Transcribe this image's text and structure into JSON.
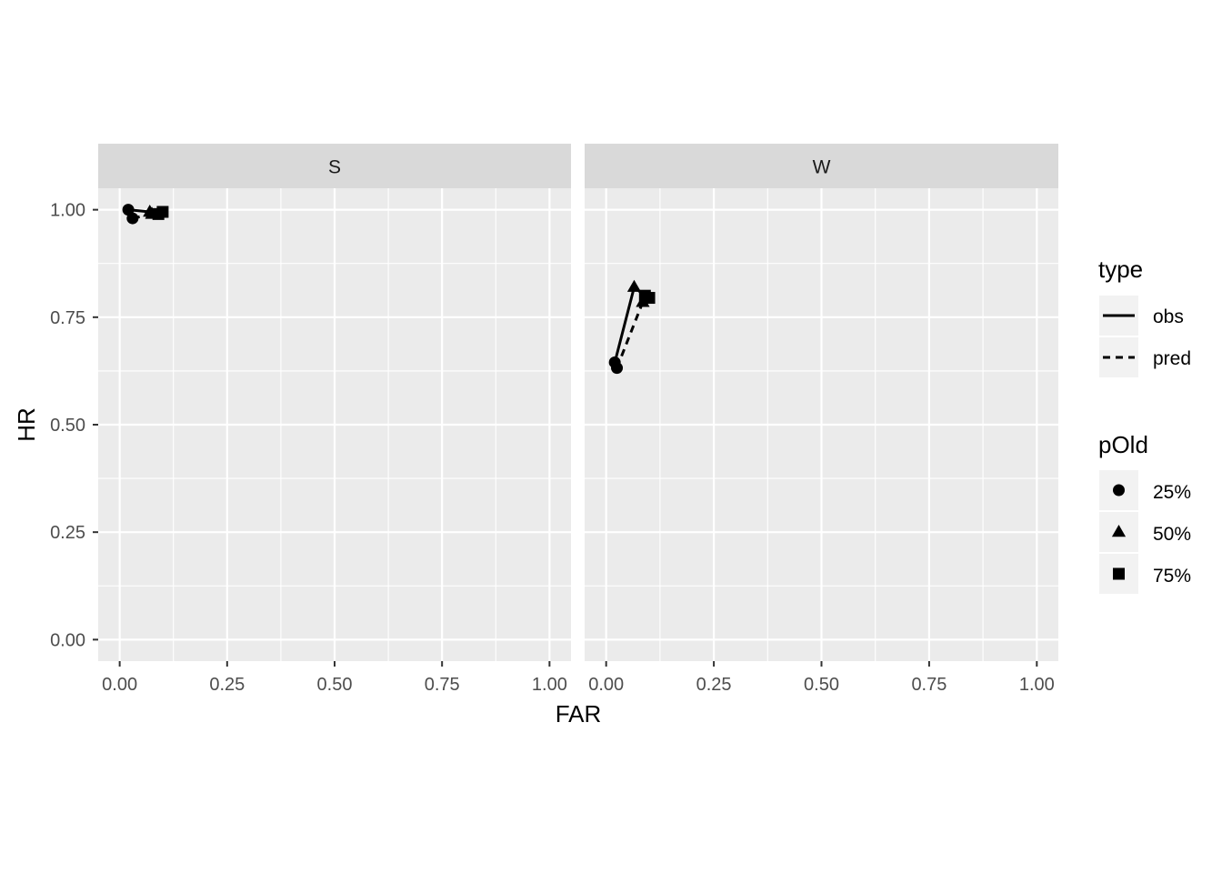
{
  "chart_data": {
    "type": "line",
    "xlabel": "FAR",
    "ylabel": "HR",
    "xlim": [
      -0.05,
      1.05
    ],
    "ylim": [
      -0.05,
      1.05
    ],
    "x_ticks": [
      "0.00",
      "0.25",
      "0.50",
      "0.75",
      "1.00"
    ],
    "y_ticks": [
      "0.00",
      "0.25",
      "0.50",
      "0.75",
      "1.00"
    ],
    "grid": true,
    "legend_position": "right",
    "panels": [
      {
        "name": "S",
        "series": [
          {
            "name": "obs",
            "linetype": "solid",
            "points": [
              {
                "x": 0.02,
                "y": 1.0,
                "shape": "circle"
              },
              {
                "x": 0.07,
                "y": 0.995,
                "shape": "triangle"
              },
              {
                "x": 0.1,
                "y": 0.995,
                "shape": "square"
              }
            ]
          },
          {
            "name": "pred",
            "linetype": "dashed",
            "points": [
              {
                "x": 0.03,
                "y": 0.98,
                "shape": "circle"
              },
              {
                "x": 0.075,
                "y": 0.99,
                "shape": "triangle"
              },
              {
                "x": 0.09,
                "y": 0.99,
                "shape": "square"
              }
            ]
          }
        ]
      },
      {
        "name": "W",
        "series": [
          {
            "name": "obs",
            "linetype": "solid",
            "points": [
              {
                "x": 0.02,
                "y": 0.645,
                "shape": "circle"
              },
              {
                "x": 0.065,
                "y": 0.82,
                "shape": "triangle"
              },
              {
                "x": 0.09,
                "y": 0.8,
                "shape": "square"
              }
            ]
          },
          {
            "name": "pred",
            "linetype": "dashed",
            "points": [
              {
                "x": 0.025,
                "y": 0.632,
                "shape": "circle"
              },
              {
                "x": 0.085,
                "y": 0.785,
                "shape": "triangle"
              },
              {
                "x": 0.1,
                "y": 0.795,
                "shape": "square"
              }
            ]
          }
        ]
      }
    ],
    "legends": {
      "type": {
        "title": "type",
        "items": [
          {
            "label": "obs",
            "linetype": "solid"
          },
          {
            "label": "pred",
            "linetype": "dashed"
          }
        ]
      },
      "pOld": {
        "title": "pOld",
        "items": [
          {
            "label": "25%",
            "shape": "circle"
          },
          {
            "label": "50%",
            "shape": "triangle"
          },
          {
            "label": "75%",
            "shape": "square"
          }
        ]
      }
    },
    "colors": {
      "panel_bg": "#ebebeb",
      "strip_bg": "#d9d9d9",
      "grid": "#ffffff",
      "ink": "#000000"
    }
  }
}
